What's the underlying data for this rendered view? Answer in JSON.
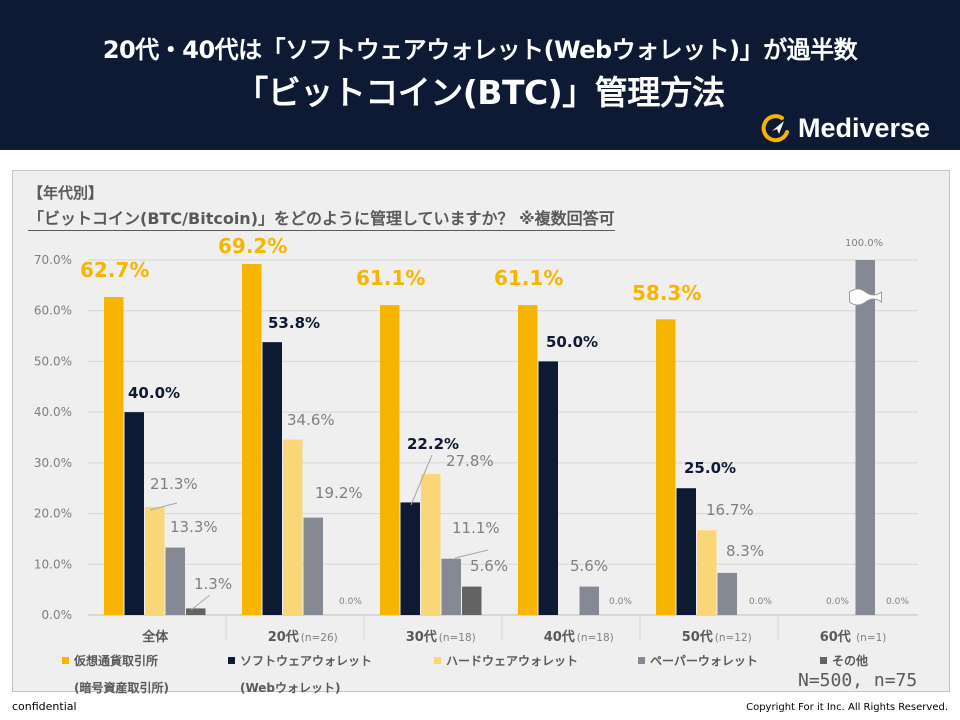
{
  "header": {
    "line1": "20代・40代は「ソフトウェアウォレット(Webウォレット)」が過半数",
    "line2": "「ビットコイン(BTC)」管理方法",
    "logo_text": "Mediverse"
  },
  "question": {
    "tag": "【年代別】",
    "title": "「ビットコイン(BTC/Bitcoin)」をどのように管理していますか？ ※複数回答可"
  },
  "legend": [
    {
      "label": "仮想通貨取引所",
      "sub": "(暗号資産取引所)",
      "color": "#f7b500"
    },
    {
      "label": "ソフトウェアウォレット",
      "sub": "(Webウォレット)",
      "color": "#0e1a33"
    },
    {
      "label": "ハードウェアウォレット",
      "color": "#f9d779"
    },
    {
      "label": "ペーパーウォレット",
      "color": "#858993"
    },
    {
      "label": "その他",
      "color": "#636363"
    }
  ],
  "chart_data": {
    "type": "bar",
    "title": "「ビットコイン(BTC/Bitcoin)」をどのように管理していますか？ ※複数回答可",
    "categories": [
      "全体",
      "20代",
      "30代",
      "40代",
      "50代",
      "60代"
    ],
    "category_n": [
      "",
      "(n=26)",
      "(n=18)",
      "(n=18)",
      "(n=12)",
      "(n=1)"
    ],
    "series": [
      {
        "name": "仮想通貨取引所",
        "color": "#f7b500",
        "values": [
          62.7,
          69.2,
          61.1,
          61.1,
          58.3,
          0.0
        ]
      },
      {
        "name": "ソフトウェアウォレット",
        "color": "#0e1a33",
        "values": [
          40.0,
          53.8,
          22.2,
          50.0,
          25.0,
          0.0
        ]
      },
      {
        "name": "ハードウェアウォレット",
        "color": "#f9d779",
        "values": [
          21.3,
          34.6,
          27.8,
          0.0,
          16.7,
          0.0
        ]
      },
      {
        "name": "ペーパーウォレット",
        "color": "#858993",
        "values": [
          13.3,
          19.2,
          11.1,
          5.6,
          8.3,
          100.0
        ]
      },
      {
        "name": "その他",
        "color": "#636363",
        "values": [
          1.3,
          0.0,
          5.6,
          0.0,
          0.0,
          0.0
        ]
      }
    ],
    "ylim": [
      0,
      70
    ],
    "yticks": [
      "0.0%",
      "10.0%",
      "20.0%",
      "30.0%",
      "40.0%",
      "50.0%",
      "60.0%",
      "70.0%"
    ],
    "labels": [
      [
        "62.7%",
        "40.0%",
        "21.3%",
        "13.3%",
        "1.3%"
      ],
      [
        "69.2%",
        "53.8%",
        "34.6%",
        "19.2%",
        "0.0%"
      ],
      [
        "61.1%",
        "22.2%",
        "27.8%",
        "11.1%",
        "5.6%"
      ],
      [
        "61.1%",
        "50.0%",
        "",
        "5.6%",
        "0.0%"
      ],
      [
        "58.3%",
        "25.0%",
        "16.7%",
        "8.3%",
        "0.0%"
      ],
      [
        "",
        "",
        "",
        "100.0%",
        "0.0%"
      ]
    ],
    "extra_labels": [
      "0.0%"
    ],
    "axis_break": true
  },
  "note": "N=500, n=75",
  "footer": {
    "left": "confidential",
    "right": "Copyright For it Inc. All Rights Reserved."
  }
}
